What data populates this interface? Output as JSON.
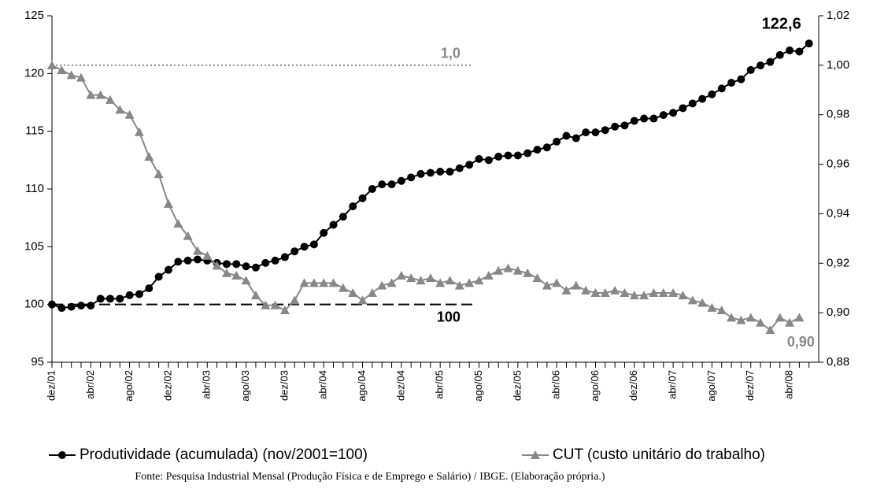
{
  "chart_data": {
    "type": "line",
    "categories": [
      "dez/01",
      null,
      null,
      null,
      "abr/02",
      null,
      null,
      null,
      "ago/02",
      null,
      null,
      null,
      "dez/02",
      null,
      null,
      null,
      "abr/03",
      null,
      null,
      null,
      "ago/03",
      null,
      null,
      null,
      "dez/03",
      null,
      null,
      null,
      "abr/04",
      null,
      null,
      null,
      "ago/04",
      null,
      null,
      null,
      "dez/04",
      null,
      null,
      null,
      "abr/05",
      null,
      null,
      null,
      "ago/05",
      null,
      null,
      null,
      "dez/05",
      null,
      null,
      null,
      "abr/06",
      null,
      null,
      null,
      "ago/06",
      null,
      null,
      null,
      "dez/06",
      null,
      null,
      null,
      "abr/07",
      null,
      null,
      null,
      "ago/07",
      null,
      null,
      null,
      "dez/07",
      null,
      null,
      null,
      "abr/08",
      null,
      null
    ],
    "series": [
      {
        "name": "Produtividade (acumulada)  (nov/2001=100)",
        "color": "#000000",
        "marker": "circle",
        "axis": "y",
        "values": [
          100.0,
          99.7,
          99.8,
          99.9,
          99.9,
          100.5,
          100.5,
          100.5,
          100.8,
          100.9,
          101.4,
          102.4,
          103.0,
          103.7,
          103.8,
          103.9,
          103.8,
          103.6,
          103.5,
          103.5,
          103.3,
          103.2,
          103.6,
          103.8,
          104.1,
          104.6,
          105.0,
          105.2,
          106.2,
          106.9,
          107.6,
          108.5,
          109.2,
          110.0,
          110.4,
          110.4,
          110.7,
          111.0,
          111.3,
          111.4,
          111.5,
          111.5,
          111.8,
          112.1,
          112.6,
          112.5,
          112.8,
          112.9,
          112.9,
          113.1,
          113.4,
          113.6,
          114.1,
          114.6,
          114.4,
          114.9,
          114.9,
          115.1,
          115.4,
          115.5,
          115.9,
          116.1,
          116.1,
          116.4,
          116.6,
          117.0,
          117.4,
          117.8,
          118.2,
          118.7,
          119.2,
          119.5,
          120.3,
          120.7,
          121.0,
          121.6,
          122.0,
          121.9,
          122.6
        ],
        "value_labels": [
          null,
          null,
          null,
          null,
          null,
          null,
          null,
          null,
          null,
          null,
          null,
          null,
          null,
          null,
          null,
          null,
          null,
          null,
          null,
          null,
          null,
          null,
          null,
          null,
          null,
          null,
          null,
          null,
          null,
          null,
          null,
          null,
          null,
          null,
          null,
          null,
          null,
          null,
          null,
          null,
          null,
          null,
          null,
          null,
          null,
          null,
          null,
          null,
          null,
          null,
          null,
          null,
          null,
          null,
          null,
          null,
          null,
          null,
          null,
          null,
          null,
          null,
          null,
          null,
          null,
          null,
          null,
          null,
          null,
          null,
          null,
          null,
          null,
          null,
          null,
          null,
          null,
          null,
          "122,6"
        ]
      },
      {
        "name": "CUT (custo unitário do trabalho)",
        "color": "#888888",
        "marker": "triangle",
        "axis": "y2",
        "values": [
          1.0,
          0.998,
          0.996,
          0.995,
          0.988,
          0.988,
          0.986,
          0.982,
          0.98,
          0.973,
          0.963,
          0.956,
          0.944,
          0.936,
          0.931,
          0.925,
          0.923,
          0.919,
          0.916,
          0.915,
          0.913,
          0.907,
          0.903,
          0.903,
          0.901,
          0.905,
          0.912,
          0.912,
          0.912,
          0.912,
          0.91,
          0.908,
          0.905,
          0.908,
          0.911,
          0.912,
          0.915,
          0.914,
          0.913,
          0.914,
          0.912,
          0.913,
          0.911,
          0.912,
          0.913,
          0.915,
          0.917,
          0.918,
          0.917,
          0.916,
          0.914,
          0.911,
          0.912,
          0.909,
          0.911,
          0.909,
          0.908,
          0.908,
          0.909,
          0.908,
          0.907,
          0.907,
          0.908,
          0.908,
          0.908,
          0.907,
          0.905,
          0.904,
          0.902,
          0.901,
          0.898,
          0.897,
          0.898,
          0.896,
          0.893,
          0.898,
          0.896,
          0.898,
          null
        ],
        "value_labels": [
          null,
          null,
          null,
          null,
          null,
          null,
          null,
          null,
          null,
          null,
          null,
          null,
          null,
          null,
          null,
          null,
          null,
          null,
          null,
          null,
          null,
          null,
          null,
          null,
          null,
          null,
          null,
          null,
          null,
          null,
          null,
          null,
          null,
          null,
          null,
          null,
          null,
          null,
          null,
          null,
          null,
          null,
          null,
          null,
          null,
          null,
          null,
          null,
          null,
          null,
          null,
          null,
          null,
          null,
          null,
          null,
          null,
          null,
          null,
          null,
          null,
          null,
          null,
          null,
          null,
          null,
          null,
          null,
          null,
          null,
          null,
          null,
          null,
          null,
          null,
          null,
          null,
          "0,90",
          null
        ]
      }
    ],
    "reference_lines": [
      {
        "value": 100,
        "label": "100",
        "axis": "y",
        "style": "dashed",
        "color": "#000000"
      },
      {
        "value": 1.0,
        "label": "1,0",
        "axis": "y2",
        "style": "dotted",
        "color": "#888888"
      }
    ],
    "ylim": [
      95,
      125
    ],
    "yticks": [
      95,
      100,
      105,
      110,
      115,
      120,
      125
    ],
    "y2lim": [
      0.88,
      1.02
    ],
    "y2ticks": [
      {
        "value": 0.88,
        "label": "0,88"
      },
      {
        "value": 0.9,
        "label": "0,90"
      },
      {
        "value": 0.92,
        "label": "0,92"
      },
      {
        "value": 0.94,
        "label": "0,94"
      },
      {
        "value": 0.96,
        "label": "0,96"
      },
      {
        "value": 0.98,
        "label": "0,98"
      },
      {
        "value": 1.0,
        "label": "1,00"
      },
      {
        "value": 1.02,
        "label": "1,02"
      }
    ],
    "legend": "bottom",
    "source": "Fonte: Pesquisa Industrial Mensal (Produção Física e de Emprego e Salário) / IBGE. (Elaboração própria.)"
  }
}
